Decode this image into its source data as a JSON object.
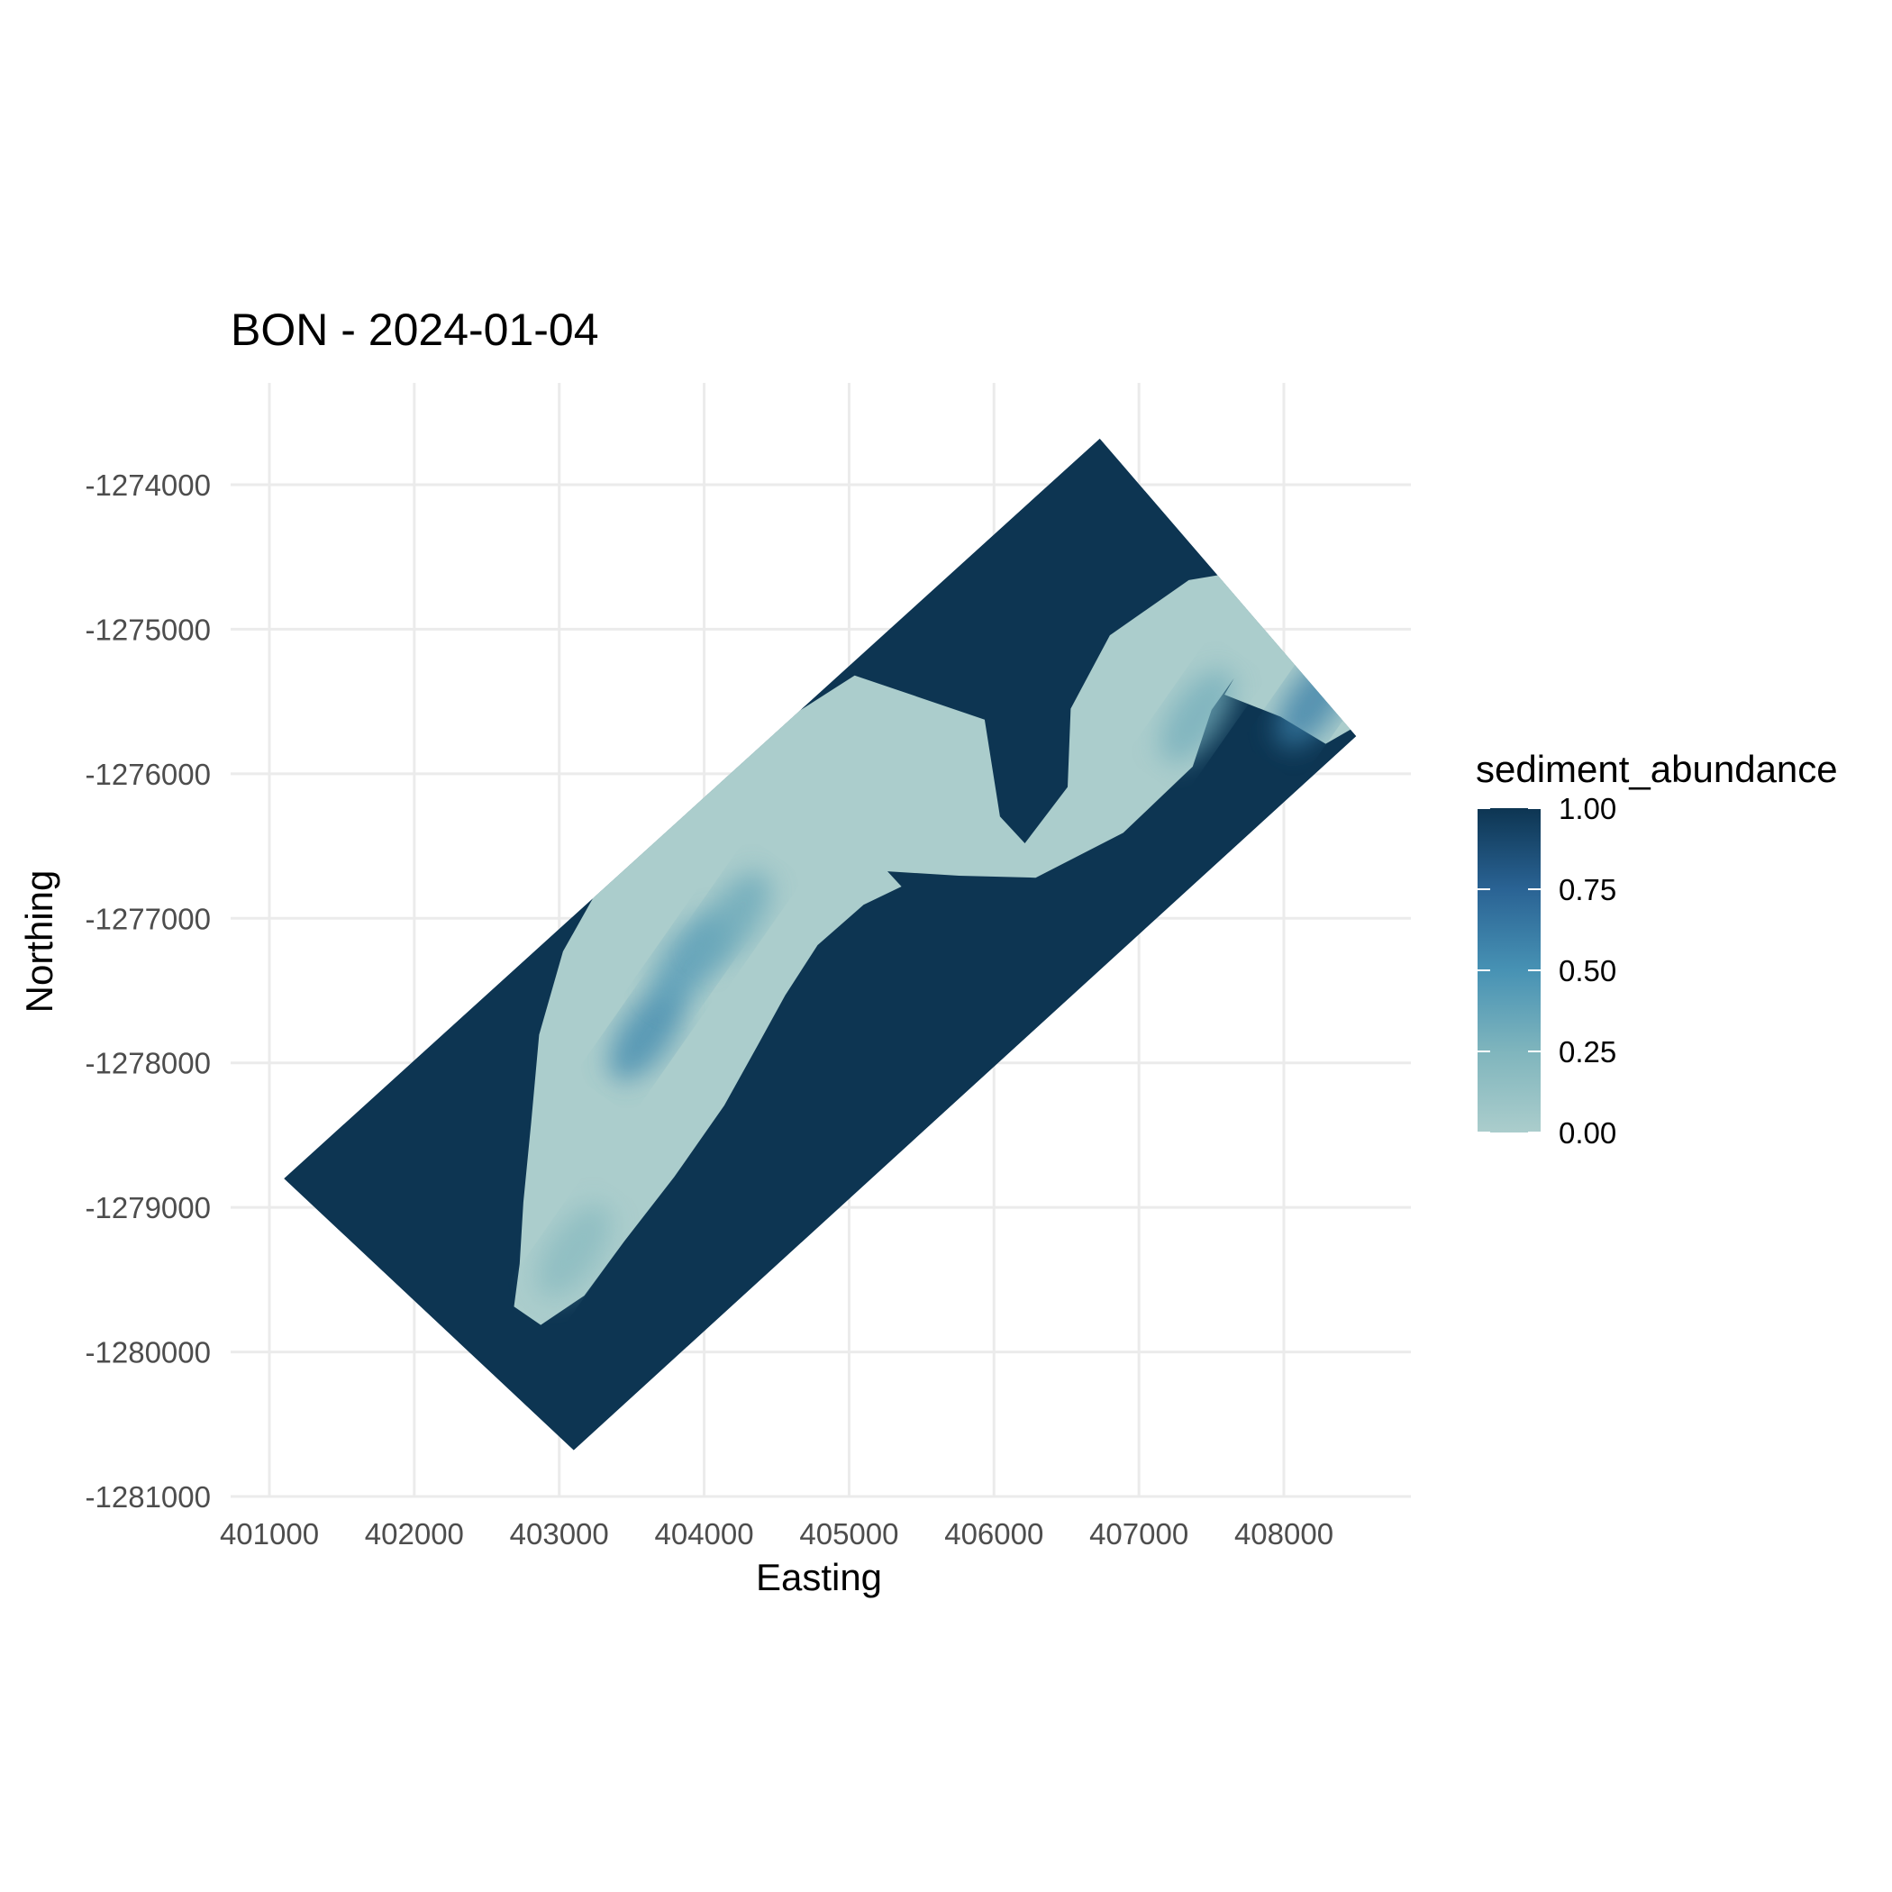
{
  "title": "BON - 2024-01-04",
  "chart_data": {
    "type": "heatmap",
    "title": "BON - 2024-01-04",
    "xlabel": "Easting",
    "ylabel": "Northing",
    "xlim": [
      400000,
      408900
    ],
    "ylim": [
      -1281000,
      -1273300
    ],
    "x_ticks": [
      401000,
      402000,
      403000,
      404000,
      405000,
      406000,
      407000,
      408000
    ],
    "x_tick_labels": [
      "401000",
      "402000",
      "403000",
      "404000",
      "405000",
      "406000",
      "407000",
      "408000"
    ],
    "y_ticks": [
      -1274000,
      -1275000,
      -1276000,
      -1277000,
      -1278000,
      -1279000,
      -1280000,
      -1281000
    ],
    "y_tick_labels": [
      "-1274000",
      "-1275000",
      "-1276000",
      "-1277000",
      "-1278000",
      "-1279000",
      "-1280000",
      "-1281000"
    ],
    "grid": true,
    "legend": {
      "title": "sediment_abundance",
      "position": "right",
      "breaks": [
        1.0,
        0.75,
        0.5,
        0.25,
        0.0
      ],
      "break_labels": [
        "1.00",
        "0.75",
        "0.50",
        "0.25",
        "0.00"
      ],
      "colors": [
        "#0d3552",
        "#2a6394",
        "#4792b4",
        "#7fb5bd",
        "#abcdcc"
      ]
    },
    "footprint": {
      "corners": [
        [
          406730,
          -1273680
        ],
        [
          408500,
          -1275740
        ],
        [
          403100,
          -1280680
        ],
        [
          401100,
          -1278800
        ]
      ],
      "value": 1.0
    },
    "low_sediment_channel": {
      "centerline": [
        [
          402780,
          -1279750
        ],
        [
          402950,
          -1279500
        ],
        [
          403100,
          -1279100
        ],
        [
          403300,
          -1278600
        ],
        [
          403500,
          -1278050
        ],
        [
          403700,
          -1277550
        ],
        [
          403950,
          -1277100
        ],
        [
          404300,
          -1276700
        ],
        [
          404700,
          -1276350
        ],
        [
          405200,
          -1276050
        ],
        [
          405600,
          -1276150
        ],
        [
          405900,
          -1276500
        ],
        [
          406250,
          -1276600
        ],
        [
          406700,
          -1276250
        ],
        [
          406950,
          -1275750
        ],
        [
          407150,
          -1275300
        ],
        [
          407500,
          -1275000
        ],
        [
          407800,
          -1275000
        ],
        [
          408250,
          -1275350
        ],
        [
          408450,
          -1275700
        ]
      ],
      "value": 0.0
    },
    "mixed_zones": [
      {
        "x": 403600,
        "y": -1277800,
        "value": 0.55
      },
      {
        "x": 403900,
        "y": -1277300,
        "value": 0.45
      },
      {
        "x": 404200,
        "y": -1277000,
        "value": 0.35
      },
      {
        "x": 403100,
        "y": -1279300,
        "value": 0.2
      },
      {
        "x": 407400,
        "y": -1275600,
        "value": 0.3
      },
      {
        "x": 408200,
        "y": -1275500,
        "value": 0.6
      }
    ]
  }
}
